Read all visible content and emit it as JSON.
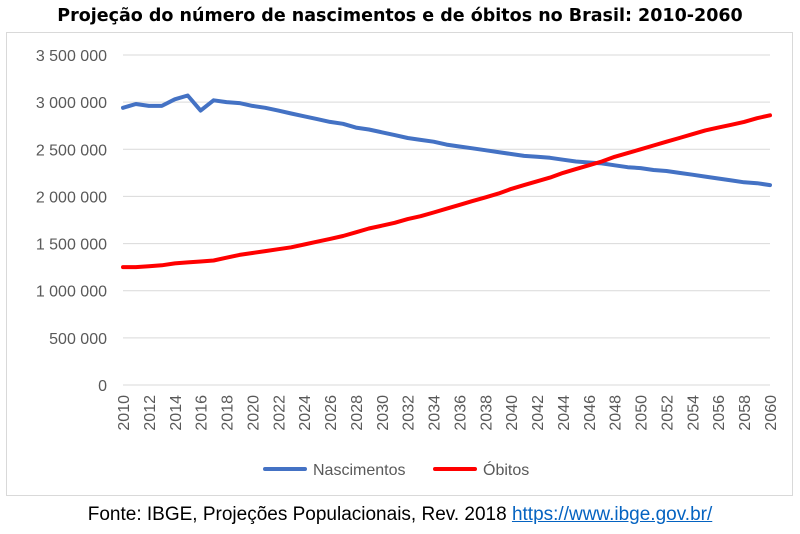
{
  "title": "Projeção do número de nascimentos e de óbitos no Brasil: 2010-2060",
  "source": {
    "text": "Fonte: IBGE, Projeções Populacionais, Rev. 2018",
    "link": "https://www.ibge.gov.br/"
  },
  "chart_data": {
    "type": "line",
    "title": "Projeção do número de nascimentos e de óbitos no Brasil: 2010-2060",
    "xlabel": "",
    "ylabel": "",
    "ylim": [
      0,
      3500000
    ],
    "yticks": [
      0,
      500000,
      1000000,
      1500000,
      2000000,
      2500000,
      3000000,
      3500000
    ],
    "ytick_labels": [
      "0",
      "500 000",
      "1 000 000",
      "1 500 000",
      "2 000 000",
      "2 500 000",
      "3 000 000",
      "3 500 000"
    ],
    "xtick_labels": [
      "2010",
      "2012",
      "2014",
      "2016",
      "2018",
      "2020",
      "2022",
      "2024",
      "2026",
      "2028",
      "2030",
      "2032",
      "2034",
      "2036",
      "2038",
      "2040",
      "2042",
      "2044",
      "2046",
      "2048",
      "2050",
      "2052",
      "2054",
      "2056",
      "2058",
      "2060"
    ],
    "grid": "horizontal",
    "legend_position": "bottom",
    "x": [
      2010,
      2011,
      2012,
      2013,
      2014,
      2015,
      2016,
      2017,
      2018,
      2019,
      2020,
      2021,
      2022,
      2023,
      2024,
      2025,
      2026,
      2027,
      2028,
      2029,
      2030,
      2031,
      2032,
      2033,
      2034,
      2035,
      2036,
      2037,
      2038,
      2039,
      2040,
      2041,
      2042,
      2043,
      2044,
      2045,
      2046,
      2047,
      2048,
      2049,
      2050,
      2051,
      2052,
      2053,
      2054,
      2055,
      2056,
      2057,
      2058,
      2059,
      2060
    ],
    "series": [
      {
        "name": "Nascimentos",
        "color": "#4472c4",
        "values": [
          2940000,
          2980000,
          2960000,
          2960000,
          3030000,
          3070000,
          2910000,
          3020000,
          3000000,
          2990000,
          2960000,
          2940000,
          2910000,
          2880000,
          2850000,
          2820000,
          2790000,
          2770000,
          2730000,
          2710000,
          2680000,
          2650000,
          2620000,
          2600000,
          2580000,
          2550000,
          2530000,
          2510000,
          2490000,
          2470000,
          2450000,
          2430000,
          2420000,
          2410000,
          2390000,
          2370000,
          2360000,
          2350000,
          2330000,
          2310000,
          2300000,
          2280000,
          2270000,
          2250000,
          2230000,
          2210000,
          2190000,
          2170000,
          2150000,
          2140000,
          2120000
        ]
      },
      {
        "name": "Óbitos",
        "color": "#ff0000",
        "values": [
          1250000,
          1250000,
          1260000,
          1270000,
          1290000,
          1300000,
          1310000,
          1320000,
          1350000,
          1380000,
          1400000,
          1420000,
          1440000,
          1460000,
          1490000,
          1520000,
          1550000,
          1580000,
          1620000,
          1660000,
          1690000,
          1720000,
          1760000,
          1790000,
          1830000,
          1870000,
          1910000,
          1950000,
          1990000,
          2030000,
          2080000,
          2120000,
          2160000,
          2200000,
          2250000,
          2290000,
          2330000,
          2370000,
          2420000,
          2460000,
          2500000,
          2540000,
          2580000,
          2620000,
          2660000,
          2700000,
          2730000,
          2760000,
          2790000,
          2830000,
          2860000
        ]
      }
    ]
  }
}
